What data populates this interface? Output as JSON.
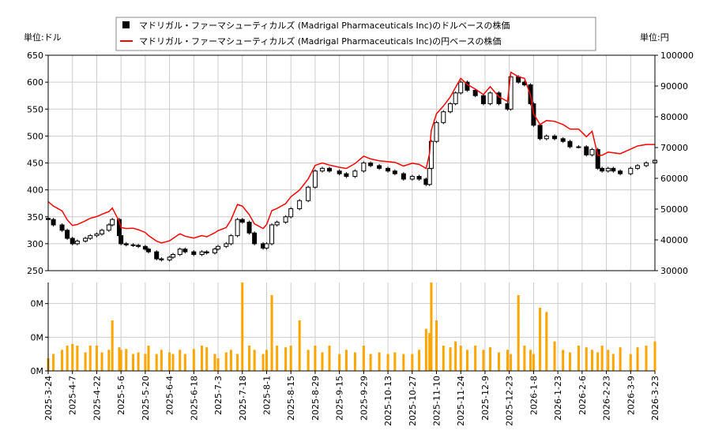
{
  "chart_data": {
    "type": "candlestick+line+bar",
    "unit_left": "単位:ドル",
    "unit_right": "単位:円",
    "legend": [
      {
        "label": "マドリガル・ファーマシューティカルズ (Madrigal Pharmaceuticals Inc)のドルベースの株価",
        "color": "#000000",
        "marker": "square"
      },
      {
        "label": "マドリガル・ファーマシューティカルズ (Madrigal Pharmaceuticals Inc)の円ベースの株価",
        "color": "#ff0000",
        "marker": "line"
      }
    ],
    "legend_position": "top-center",
    "grid": true,
    "y_left": {
      "range": [
        250,
        650
      ],
      "ticks": [
        250,
        300,
        350,
        400,
        450,
        500,
        550,
        600,
        650
      ]
    },
    "y_right": {
      "range": [
        30000,
        100000
      ],
      "ticks": [
        30000,
        40000,
        50000,
        60000,
        70000,
        80000,
        90000,
        100000
      ]
    },
    "volume_axis": {
      "range": [
        0,
        1.05
      ],
      "ticks": [
        0,
        0.4,
        0.8
      ],
      "tick_labels": [
        "0M",
        "0M",
        "0M"
      ],
      "color": "#ffa500"
    },
    "x_ticks": [
      "2025-3-24",
      "2025-4-7",
      "2025-4-22",
      "2025-5-6",
      "2025-5-20",
      "2025-6-4",
      "2025-6-18",
      "2025-7-3",
      "2025-7-18",
      "2025-8-1",
      "2025-8-15",
      "2025-8-29",
      "2025-9-15",
      "2025-9-29",
      "2025-10-13",
      "2025-10-27",
      "2025-11-10",
      "2025-11-24",
      "2025-12-9",
      "2025-12-23",
      "2026-1-8",
      "2026-1-23",
      "2026-2-6",
      "2026-2-23",
      "2026-3-9",
      "2026-3-23"
    ],
    "series": {
      "dates": [
        "2025-3-24",
        "2025-3-27",
        "2025-4-1",
        "2025-4-4",
        "2025-4-7",
        "2025-4-10",
        "2025-4-15",
        "2025-4-18",
        "2025-4-22",
        "2025-4-25",
        "2025-4-29",
        "2025-5-1",
        "2025-5-5",
        "2025-5-6",
        "2025-5-9",
        "2025-5-13",
        "2025-5-16",
        "2025-5-20",
        "2025-5-22",
        "2025-5-27",
        "2025-5-30",
        "2025-6-4",
        "2025-6-6",
        "2025-6-10",
        "2025-6-13",
        "2025-6-18",
        "2025-6-23",
        "2025-6-26",
        "2025-7-1",
        "2025-7-3",
        "2025-7-8",
        "2025-7-11",
        "2025-7-15",
        "2025-7-18",
        "2025-7-22",
        "2025-7-25",
        "2025-7-30",
        "2025-8-1",
        "2025-8-4",
        "2025-8-7",
        "2025-8-12",
        "2025-8-15",
        "2025-8-20",
        "2025-8-25",
        "2025-8-29",
        "2025-9-3",
        "2025-9-8",
        "2025-9-15",
        "2025-9-19",
        "2025-9-24",
        "2025-9-29",
        "2025-10-3",
        "2025-10-8",
        "2025-10-13",
        "2025-10-17",
        "2025-10-22",
        "2025-10-27",
        "2025-10-31",
        "2025-11-4",
        "2025-11-6",
        "2025-11-7",
        "2025-11-10",
        "2025-11-14",
        "2025-11-18",
        "2025-11-21",
        "2025-11-24",
        "2025-11-28",
        "2025-12-3",
        "2025-12-8",
        "2025-12-12",
        "2025-12-17",
        "2025-12-22",
        "2025-12-24",
        "2025-12-29",
        "2026-1-2",
        "2026-1-6",
        "2026-1-8",
        "2026-1-12",
        "2026-1-16",
        "2026-1-21",
        "2026-1-26",
        "2026-1-30",
        "2026-2-4",
        "2026-2-9",
        "2026-2-13",
        "2026-2-17",
        "2026-2-20",
        "2026-2-24",
        "2026-2-27",
        "2026-3-3",
        "2026-3-9",
        "2026-3-13",
        "2026-3-18",
        "2026-3-23"
      ],
      "usd_close": [
        345,
        335,
        325,
        310,
        300,
        305,
        310,
        315,
        318,
        325,
        335,
        345,
        315,
        300,
        298,
        297,
        295,
        290,
        285,
        272,
        270,
        275,
        280,
        290,
        285,
        280,
        285,
        283,
        290,
        295,
        300,
        315,
        345,
        340,
        320,
        300,
        292,
        300,
        335,
        340,
        350,
        365,
        380,
        405,
        435,
        440,
        435,
        430,
        425,
        435,
        450,
        445,
        440,
        435,
        430,
        420,
        425,
        420,
        410,
        440,
        490,
        525,
        545,
        560,
        580,
        600,
        585,
        575,
        560,
        580,
        560,
        550,
        610,
        600,
        595,
        560,
        520,
        495,
        500,
        495,
        490,
        480,
        480,
        465,
        475,
        440,
        435,
        440,
        435,
        430,
        440,
        445,
        450,
        455
      ],
      "jpy_close": [
        52400,
        51000,
        49400,
        46500,
        44700,
        45000,
        46200,
        47000,
        47600,
        48300,
        49200,
        50300,
        46000,
        44000,
        43700,
        43800,
        43300,
        42400,
        41400,
        39600,
        39000,
        39700,
        40500,
        42000,
        41200,
        40600,
        41400,
        41000,
        42300,
        43000,
        44000,
        46500,
        51500,
        51000,
        48200,
        45200,
        43700,
        45000,
        49500,
        50200,
        51800,
        54000,
        56200,
        59800,
        64200,
        65000,
        64300,
        63600,
        63200,
        64800,
        67200,
        66300,
        65700,
        65400,
        65200,
        64000,
        64900,
        64500,
        63200,
        68000,
        75600,
        81000,
        83500,
        86500,
        89600,
        92500,
        90500,
        89000,
        87200,
        89800,
        86500,
        85000,
        94500,
        93000,
        92500,
        87000,
        81000,
        77500,
        78800,
        78500,
        77500,
        76000,
        76000,
        73500,
        75300,
        67500,
        67500,
        68500,
        68300,
        68000,
        69500,
        70500,
        71000,
        71000
      ],
      "volume_m": [
        0.15,
        0.2,
        0.25,
        0.3,
        0.32,
        0.3,
        0.22,
        0.3,
        0.3,
        0.22,
        0.25,
        0.6,
        0.28,
        0.25,
        0.26,
        0.2,
        0.22,
        0.2,
        0.3,
        0.2,
        0.25,
        0.22,
        0.2,
        0.25,
        0.2,
        0.26,
        0.3,
        0.28,
        0.2,
        0.15,
        0.22,
        0.25,
        0.2,
        1.05,
        0.3,
        0.25,
        0.2,
        0.25,
        0.9,
        0.3,
        0.28,
        0.3,
        0.6,
        0.25,
        0.3,
        0.22,
        0.3,
        0.2,
        0.25,
        0.22,
        0.3,
        0.2,
        0.22,
        0.2,
        0.22,
        0.2,
        0.2,
        0.25,
        0.5,
        0.45,
        1.05,
        0.6,
        0.3,
        0.28,
        0.35,
        0.3,
        0.25,
        0.3,
        0.25,
        0.28,
        0.22,
        0.25,
        0.2,
        0.9,
        0.3,
        0.25,
        0.2,
        0.75,
        0.7,
        0.35,
        0.25,
        0.22,
        0.3,
        0.28,
        0.25,
        0.22,
        0.3,
        0.25,
        0.2,
        0.28,
        0.2,
        0.28,
        0.3,
        0.35
      ]
    }
  }
}
